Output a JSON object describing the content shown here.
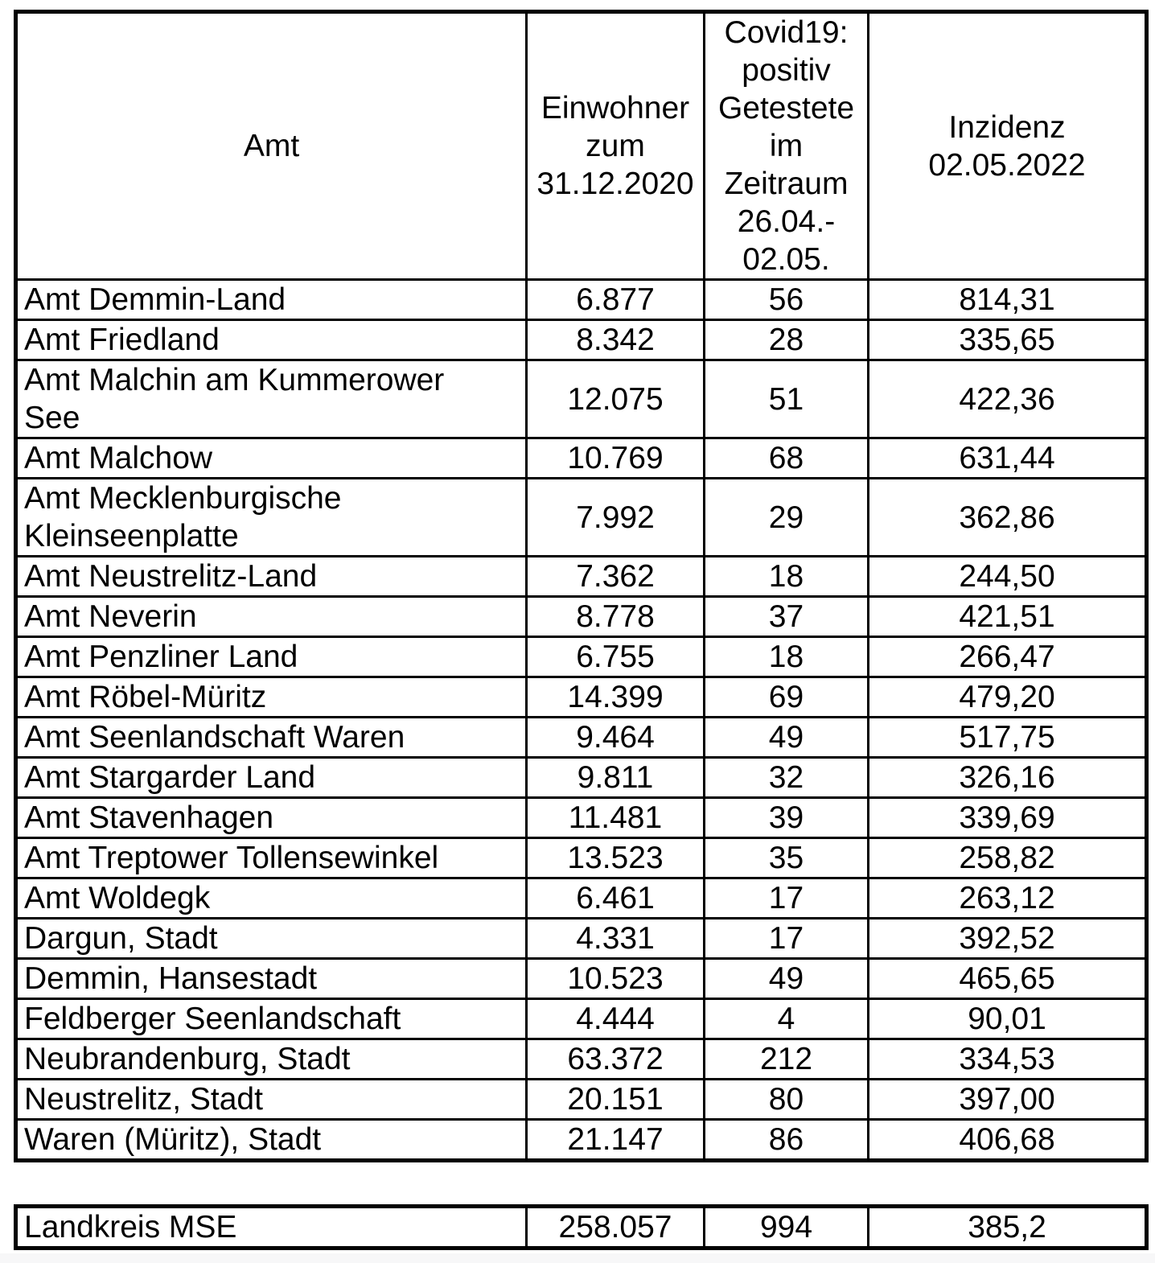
{
  "page": {
    "background_color": "#ffffff",
    "text_color": "#000000",
    "border_color": "#000000"
  },
  "table": {
    "columns": [
      {
        "key": "amt",
        "label": "Amt"
      },
      {
        "key": "einwohner",
        "label": "Einwohner\nzum\n31.12.2020"
      },
      {
        "key": "positiv",
        "label": "Covid19:\npositiv\nGetestete\nim\nZeitraum\n26.04.-\n02.05."
      },
      {
        "key": "inzidenz",
        "label": "Inzidenz\n02.05.2022"
      }
    ],
    "rows": [
      {
        "amt": "Amt Demmin-Land",
        "einwohner": "6.877",
        "positiv": "56",
        "inzidenz": "814,31"
      },
      {
        "amt": "Amt Friedland",
        "einwohner": "8.342",
        "positiv": "28",
        "inzidenz": "335,65"
      },
      {
        "amt": "Amt Malchin am Kummerower\nSee",
        "einwohner": "12.075",
        "positiv": "51",
        "inzidenz": "422,36"
      },
      {
        "amt": "Amt Malchow",
        "einwohner": "10.769",
        "positiv": "68",
        "inzidenz": "631,44"
      },
      {
        "amt": "Amt Mecklenburgische\nKleinseenplatte",
        "einwohner": "7.992",
        "positiv": "29",
        "inzidenz": "362,86"
      },
      {
        "amt": "Amt Neustrelitz-Land",
        "einwohner": "7.362",
        "positiv": "18",
        "inzidenz": "244,50"
      },
      {
        "amt": "Amt Neverin",
        "einwohner": "8.778",
        "positiv": "37",
        "inzidenz": "421,51"
      },
      {
        "amt": "Amt Penzliner Land",
        "einwohner": "6.755",
        "positiv": "18",
        "inzidenz": "266,47"
      },
      {
        "amt": "Amt Röbel-Müritz",
        "einwohner": "14.399",
        "positiv": "69",
        "inzidenz": "479,20"
      },
      {
        "amt": "Amt Seenlandschaft Waren",
        "einwohner": "9.464",
        "positiv": "49",
        "inzidenz": "517,75"
      },
      {
        "amt": "Amt Stargarder Land",
        "einwohner": "9.811",
        "positiv": "32",
        "inzidenz": "326,16"
      },
      {
        "amt": "Amt Stavenhagen",
        "einwohner": "11.481",
        "positiv": "39",
        "inzidenz": "339,69"
      },
      {
        "amt": "Amt Treptower Tollensewinkel",
        "einwohner": "13.523",
        "positiv": "35",
        "inzidenz": "258,82"
      },
      {
        "amt": "Amt Woldegk",
        "einwohner": "6.461",
        "positiv": "17",
        "inzidenz": "263,12"
      },
      {
        "amt": "Dargun, Stadt",
        "einwohner": "4.331",
        "positiv": "17",
        "inzidenz": "392,52"
      },
      {
        "amt": "Demmin, Hansestadt",
        "einwohner": "10.523",
        "positiv": "49",
        "inzidenz": "465,65"
      },
      {
        "amt": "Feldberger Seenlandschaft",
        "einwohner": "4.444",
        "positiv": "4",
        "inzidenz": "90,01"
      },
      {
        "amt": "Neubrandenburg, Stadt",
        "einwohner": "63.372",
        "positiv": "212",
        "inzidenz": "334,53"
      },
      {
        "amt": "Neustrelitz, Stadt",
        "einwohner": "20.151",
        "positiv": "80",
        "inzidenz": "397,00"
      },
      {
        "amt": "Waren (Müritz), Stadt",
        "einwohner": "21.147",
        "positiv": "86",
        "inzidenz": "406,68"
      }
    ],
    "summary": {
      "amt": "Landkreis MSE",
      "einwohner": "258.057",
      "positiv": "994",
      "inzidenz": "385,2"
    }
  }
}
